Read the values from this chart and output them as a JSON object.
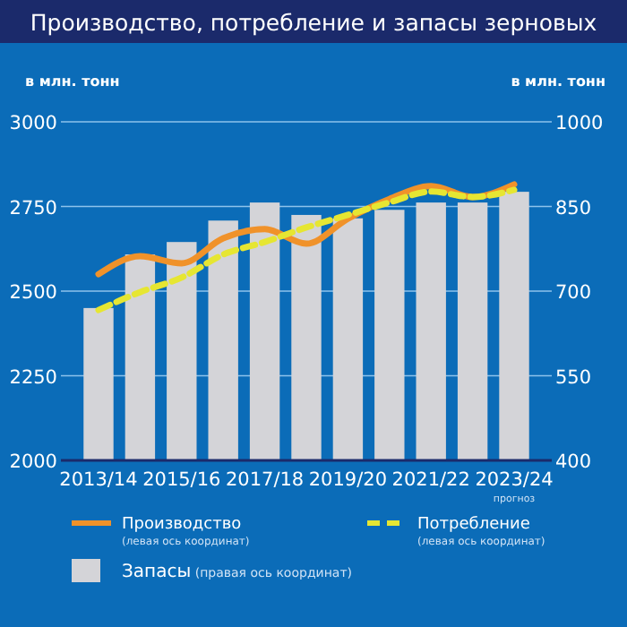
{
  "chart_data": {
    "type": "bar",
    "title": "Производство, потребление и запасы зерновых",
    "ylabel": "в млн. тонн",
    "y2label": "в млн. тонн",
    "categories": [
      "2013/14",
      null,
      "2015/16",
      null,
      "2017/18",
      null,
      "2019/20",
      null,
      "2021/22",
      null,
      "2023/24"
    ],
    "series": [
      {
        "name": "Запасы (правая ось координат)",
        "axis": "y2",
        "color": "#d4d4d8",
        "values": [
          670,
          765,
          787,
          825,
          857,
          835,
          829,
          844,
          857,
          857,
          876
        ]
      },
      {
        "name": "Производство (левая ось координат)",
        "type": "line",
        "axis": "y",
        "color": "#f0922a",
        "line_style": "solid",
        "values": [
          2550,
          2603,
          2582,
          2656,
          2683,
          2640,
          2714,
          2772,
          2810,
          2778,
          2815
        ]
      },
      {
        "name": "Потребление (левая ось координат)",
        "type": "line",
        "axis": "y",
        "color": "#e6e632",
        "line_style": "dashed",
        "values": [
          2444,
          2497,
          2540,
          2608,
          2645,
          2688,
          2725,
          2762,
          2794,
          2778,
          2799
        ]
      }
    ],
    "ylim": [
      2000,
      3000
    ],
    "yticks": [
      2000,
      2250,
      2500,
      2750,
      3000
    ],
    "y2lim": [
      400,
      1000
    ],
    "y2ticks": [
      400,
      550,
      700,
      850,
      1000
    ],
    "grid": "y",
    "legend": "bottom",
    "marker": "none",
    "annotations": [
      "прогноз"
    ]
  }
}
